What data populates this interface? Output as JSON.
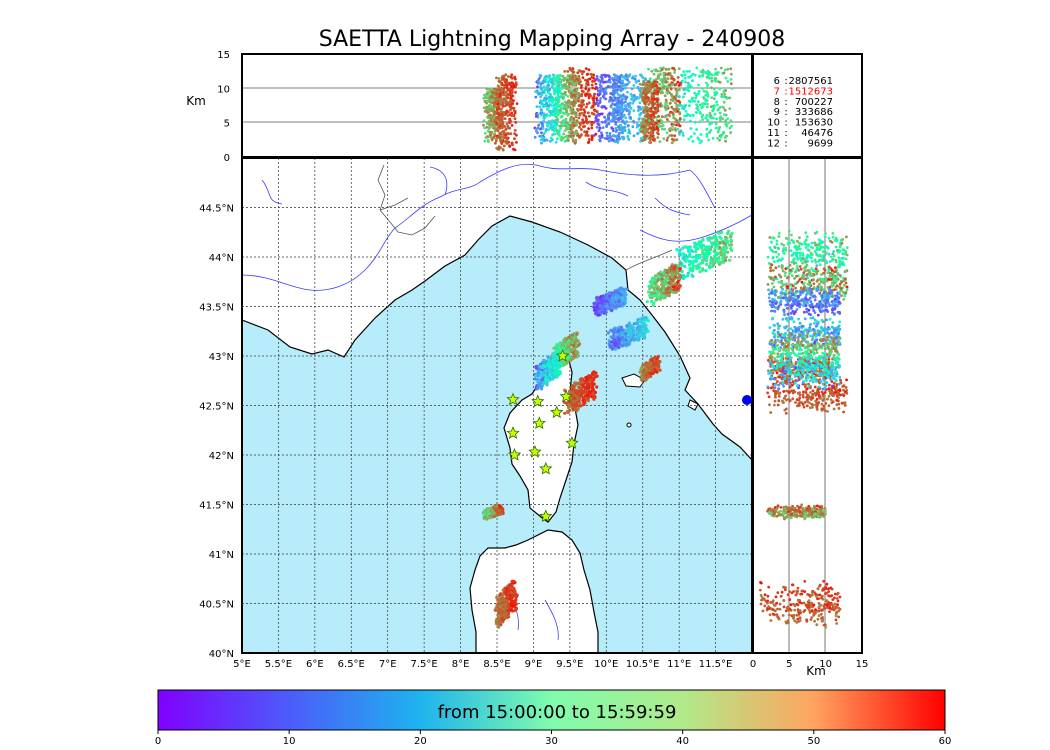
{
  "header": {
    "title": "SAETTA Lightning Mapping Array - 240908"
  },
  "altitude_axis": {
    "label": "Km",
    "ticks": [
      "0",
      "5",
      "10",
      "15"
    ]
  },
  "map": {
    "lon_ticks": [
      "5°E",
      "5.5°E",
      "6°E",
      "6.5°E",
      "7°E",
      "7.5°E",
      "8°E",
      "8.5°E",
      "9°E",
      "9.5°E",
      "10°E",
      "10.5°E",
      "11°E",
      "11.5°E"
    ],
    "lat_ticks": [
      "40°N",
      "40.5°N",
      "41°N",
      "41.5°N",
      "42°N",
      "42.5°N",
      "43°N",
      "43.5°N",
      "44°N",
      "44.5°N"
    ],
    "colors": {
      "sea": "#b7ecfa",
      "coast": "#000000",
      "rivers": "#3a3aff",
      "borders": "#555555",
      "station_fill": "#c8ff00",
      "station_edge": "#2a6e00"
    }
  },
  "side_axis": {
    "label": "Km",
    "ticks": [
      "0",
      "5",
      "10",
      "15"
    ]
  },
  "stations_table": [
    {
      "n": "6",
      "count": "2807561",
      "color": "#000000"
    },
    {
      "n": "7",
      "count": "1512673",
      "color": "#ff0000"
    },
    {
      "n": "8",
      "count": "700227",
      "color": "#000000"
    },
    {
      "n": "9",
      "count": "333686",
      "color": "#000000"
    },
    {
      "n": "10",
      "count": "153630",
      "color": "#000000"
    },
    {
      "n": "11",
      "count": "46476",
      "color": "#000000"
    },
    {
      "n": "12",
      "count": "9699",
      "color": "#000000"
    }
  ],
  "colorbar": {
    "label": "from 15:00:00 to 15:59:59",
    "ticks": [
      "0",
      "10",
      "20",
      "30",
      "40",
      "50",
      "60"
    ],
    "colormap": "rainbow"
  },
  "chart_data": {
    "type": "scatter",
    "title": "SAETTA Lightning Mapping Array - 240908",
    "xlim": [
      5,
      12
    ],
    "ylim": [
      40,
      45
    ],
    "alt_lim": [
      0,
      15
    ],
    "time_lim": [
      0,
      60
    ],
    "color_variable": "time (minutes after 15:00:00)",
    "stations": [
      [
        8.72,
        42.56
      ],
      [
        9.06,
        42.54
      ],
      [
        9.4,
        43.0
      ],
      [
        9.45,
        42.59
      ],
      [
        9.32,
        42.43
      ],
      [
        9.08,
        42.32
      ],
      [
        8.72,
        42.22
      ],
      [
        9.53,
        42.12
      ],
      [
        8.74,
        42.0
      ],
      [
        9.02,
        42.03
      ],
      [
        9.17,
        41.86
      ],
      [
        9.17,
        41.38
      ]
    ],
    "clusters": [
      {
        "lon": [
          11.0,
          11.7
        ],
        "lat": [
          43.75,
          44.3
        ],
        "t": [
          15,
          52
        ],
        "alt": [
          2,
          13
        ]
      },
      {
        "lon": [
          10.6,
          11.0
        ],
        "lat": [
          43.5,
          43.95
        ],
        "t": [
          30,
          60
        ],
        "alt": [
          2,
          13
        ]
      },
      {
        "lon": [
          10.05,
          10.55
        ],
        "lat": [
          43.05,
          43.4
        ],
        "t": [
          3,
          25
        ],
        "alt": [
          2,
          12
        ]
      },
      {
        "lon": [
          9.85,
          10.25
        ],
        "lat": [
          43.4,
          43.7
        ],
        "t": [
          2,
          18
        ],
        "alt": [
          2,
          12
        ]
      },
      {
        "lon": [
          10.5,
          10.7
        ],
        "lat": [
          42.75,
          43.0
        ],
        "t": [
          45,
          60
        ],
        "alt": [
          2,
          11
        ]
      },
      {
        "lon": [
          9.45,
          9.85
        ],
        "lat": [
          42.4,
          42.85
        ],
        "t": [
          48,
          60
        ],
        "alt": [
          2,
          13
        ]
      },
      {
        "lon": [
          9.3,
          9.6
        ],
        "lat": [
          42.85,
          43.25
        ],
        "t": [
          30,
          55
        ],
        "alt": [
          2,
          12
        ]
      },
      {
        "lon": [
          9.05,
          9.35
        ],
        "lat": [
          42.65,
          43.05
        ],
        "t": [
          3,
          35
        ],
        "alt": [
          2,
          12
        ]
      },
      {
        "lon": [
          8.5,
          8.75
        ],
        "lat": [
          40.25,
          40.75
        ],
        "t": [
          48,
          60
        ],
        "alt": [
          1,
          12
        ]
      },
      {
        "lon": [
          8.35,
          8.55
        ],
        "lat": [
          41.35,
          41.5
        ],
        "t": [
          38,
          60
        ],
        "alt": [
          2,
          10
        ]
      }
    ]
  }
}
